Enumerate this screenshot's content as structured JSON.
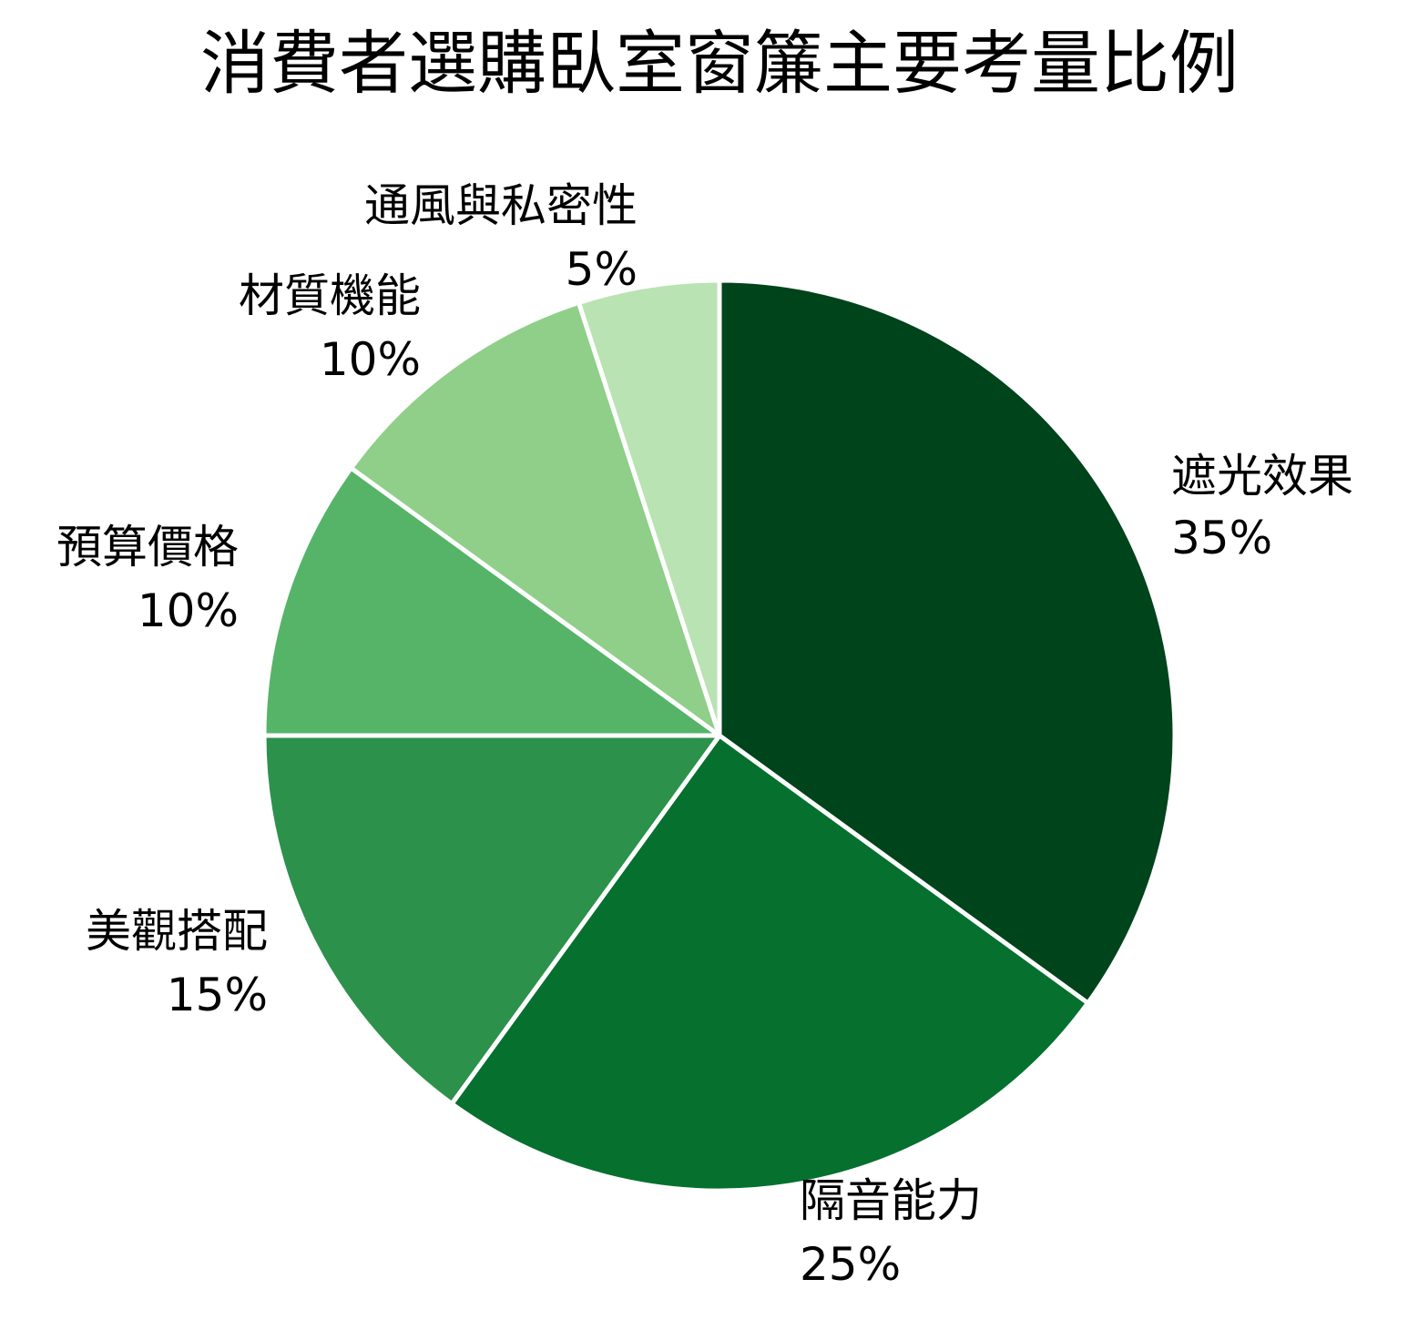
{
  "chart_data": {
    "type": "pie",
    "title": "消費者選購臥室窗簾主要考量比例",
    "start_angle_deg": 0,
    "direction": "clockwise",
    "legend": "none",
    "slices": [
      {
        "label": "遮光效果",
        "value": 35,
        "display": "35%",
        "color": "#00441b"
      },
      {
        "label": "隔音能力",
        "value": 25,
        "display": "25%",
        "color": "#06702f"
      },
      {
        "label": "美觀搭配",
        "value": 15,
        "display": "15%",
        "color": "#2c914b"
      },
      {
        "label": "預算價格",
        "value": 10,
        "display": "10%",
        "color": "#55b468"
      },
      {
        "label": "材質機能",
        "value": 10,
        "display": "10%",
        "color": "#8fcf89"
      },
      {
        "label": "通風與私密性",
        "value": 5,
        "display": "5%",
        "color": "#b9e3b2"
      }
    ]
  }
}
